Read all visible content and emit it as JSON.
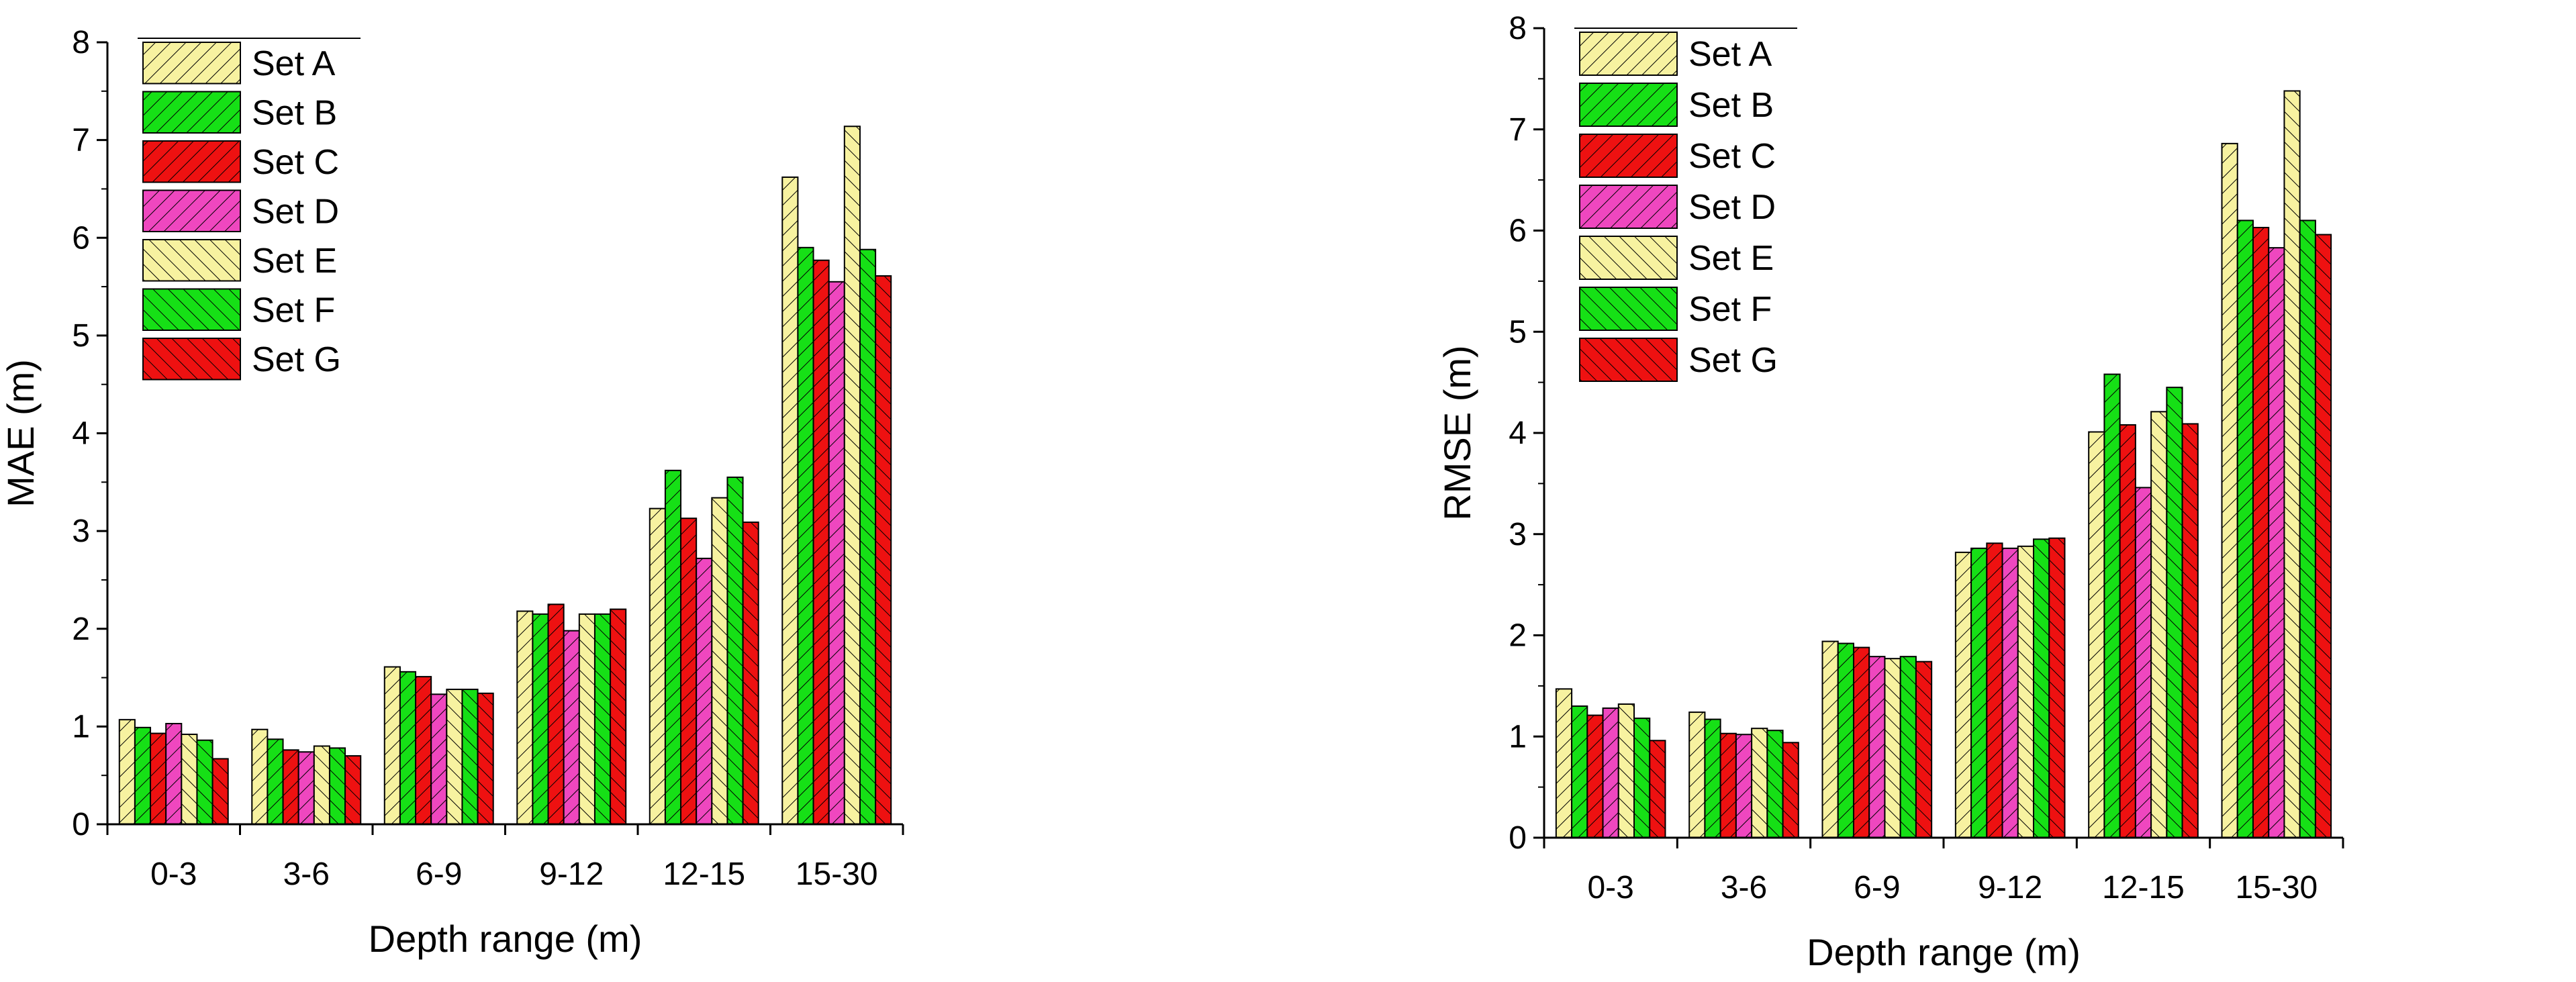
{
  "chart_data": [
    {
      "type": "bar",
      "id": "mae",
      "title": "",
      "xlabel": "Depth range (m)",
      "ylabel": "MAE (m)",
      "ylim": [
        0,
        8
      ],
      "yticks": [
        0,
        1,
        2,
        3,
        4,
        5,
        6,
        7,
        8
      ],
      "categories": [
        "0-3",
        "3-6",
        "6-9",
        "9-12",
        "12-15",
        "15-30"
      ],
      "legend_position": "top-left",
      "series": [
        {
          "name": "Set A",
          "color": "#f7f2a0",
          "hatch": "fwd",
          "values": [
            1.07,
            0.97,
            1.61,
            2.18,
            3.23,
            6.62
          ]
        },
        {
          "name": "Set B",
          "color": "#16e016",
          "hatch": "fwd",
          "values": [
            0.99,
            0.87,
            1.56,
            2.15,
            3.62,
            5.9
          ]
        },
        {
          "name": "Set C",
          "color": "#ee1111",
          "hatch": "fwd",
          "values": [
            0.93,
            0.76,
            1.51,
            2.25,
            3.13,
            5.77
          ]
        },
        {
          "name": "Set D",
          "color": "#ef47bf",
          "hatch": "fwd",
          "values": [
            1.03,
            0.74,
            1.33,
            1.98,
            2.72,
            5.55
          ]
        },
        {
          "name": "Set E",
          "color": "#f7f2a0",
          "hatch": "back",
          "values": [
            0.92,
            0.8,
            1.38,
            2.15,
            3.34,
            7.14
          ]
        },
        {
          "name": "Set F",
          "color": "#16e016",
          "hatch": "back",
          "values": [
            0.86,
            0.78,
            1.38,
            2.15,
            3.55,
            5.88
          ]
        },
        {
          "name": "Set G",
          "color": "#ee1111",
          "hatch": "back",
          "values": [
            0.67,
            0.7,
            1.34,
            2.2,
            3.09,
            5.61
          ]
        }
      ]
    },
    {
      "type": "bar",
      "id": "rmse",
      "title": "",
      "xlabel": "Depth range (m)",
      "ylabel": "RMSE (m)",
      "ylim": [
        0,
        8
      ],
      "yticks": [
        0,
        1,
        2,
        3,
        4,
        5,
        6,
        7,
        8
      ],
      "categories": [
        "0-3",
        "3-6",
        "6-9",
        "9-12",
        "12-15",
        "15-30"
      ],
      "legend_position": "top-left",
      "series": [
        {
          "name": "Set A",
          "color": "#f7f2a0",
          "hatch": "fwd",
          "values": [
            1.47,
            1.24,
            1.94,
            2.82,
            4.01,
            6.86
          ]
        },
        {
          "name": "Set B",
          "color": "#16e016",
          "hatch": "fwd",
          "values": [
            1.3,
            1.17,
            1.92,
            2.86,
            4.58,
            6.1
          ]
        },
        {
          "name": "Set C",
          "color": "#ee1111",
          "hatch": "fwd",
          "values": [
            1.21,
            1.03,
            1.88,
            2.91,
            4.08,
            6.03
          ]
        },
        {
          "name": "Set D",
          "color": "#ef47bf",
          "hatch": "fwd",
          "values": [
            1.28,
            1.02,
            1.79,
            2.86,
            3.46,
            5.83
          ]
        },
        {
          "name": "Set E",
          "color": "#f7f2a0",
          "hatch": "back",
          "values": [
            1.32,
            1.08,
            1.77,
            2.88,
            4.21,
            7.38
          ]
        },
        {
          "name": "Set F",
          "color": "#16e016",
          "hatch": "back",
          "values": [
            1.18,
            1.06,
            1.79,
            2.95,
            4.45,
            6.1
          ]
        },
        {
          "name": "Set G",
          "color": "#ee1111",
          "hatch": "back",
          "values": [
            0.96,
            0.94,
            1.74,
            2.96,
            4.09,
            5.96
          ]
        }
      ]
    }
  ]
}
